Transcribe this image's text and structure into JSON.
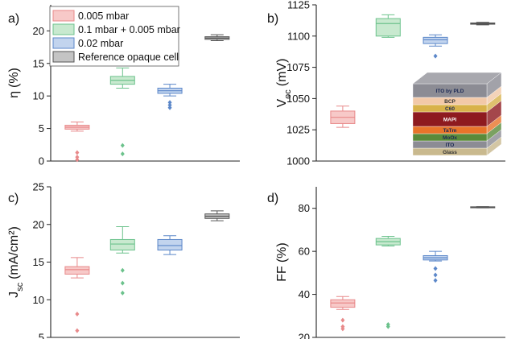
{
  "chart_data": [
    {
      "type": "box",
      "panel_label": "a)",
      "ylabel_main": "η",
      "ylabel_sub": "",
      "ylabel_unit": "(%)",
      "ylim": [
        0,
        24
      ],
      "yticks": [
        0,
        5,
        10,
        15,
        20
      ],
      "legend_position": "top-left",
      "series": [
        {
          "name": "0.005 mbar",
          "color": "#e8898a",
          "fill": "#f7c9c8",
          "whisker_low": 4.6,
          "q1": 4.9,
          "median": 5.2,
          "q3": 5.5,
          "whisker_high": 6.0,
          "outliers": [
            1.3,
            0.6,
            0.2
          ]
        },
        {
          "name": "0.1 mbar + 0.005 mbar",
          "color": "#6cc28c",
          "fill": "#c8e9cf",
          "whisker_low": 11.2,
          "q1": 11.8,
          "median": 12.4,
          "q3": 13.0,
          "whisker_high": 14.3,
          "outliers": [
            2.4,
            1.1
          ]
        },
        {
          "name": "0.02 mbar",
          "color": "#5b87c9",
          "fill": "#c2d4ee",
          "whisker_low": 10.0,
          "q1": 10.4,
          "median": 10.8,
          "q3": 11.2,
          "whisker_high": 11.8,
          "outliers": [
            9.0,
            8.6,
            8.2
          ]
        },
        {
          "name": "Reference opaque cell",
          "color": "#555555",
          "fill": "#c4c4c4",
          "whisker_low": 18.5,
          "q1": 18.7,
          "median": 18.9,
          "q3": 19.1,
          "whisker_high": 19.4,
          "outliers": []
        }
      ]
    },
    {
      "type": "box",
      "panel_label": "b)",
      "ylabel_main": "V",
      "ylabel_sub": "oc",
      "ylabel_unit": "(mV)",
      "ylim": [
        1000,
        1125
      ],
      "yticks": [
        1000,
        1025,
        1050,
        1075,
        1100,
        1125
      ],
      "series": [
        {
          "name": "0.005 mbar",
          "whisker_low": 1027,
          "q1": 1030,
          "median": 1035,
          "q3": 1040,
          "whisker_high": 1044,
          "outliers": []
        },
        {
          "name": "0.1 mbar + 0.005 mbar",
          "whisker_low": 1099,
          "q1": 1100,
          "median": 1110,
          "q3": 1114,
          "whisker_high": 1117,
          "outliers": []
        },
        {
          "name": "0.02 mbar",
          "whisker_low": 1092,
          "q1": 1094,
          "median": 1097,
          "q3": 1099,
          "whisker_high": 1101,
          "outliers": [
            1084
          ]
        },
        {
          "name": "Reference opaque cell",
          "whisker_low": 1109,
          "q1": 1109.5,
          "median": 1110,
          "q3": 1110.5,
          "whisker_high": 1111,
          "outliers": []
        }
      ],
      "inset_layers": [
        {
          "label": "ITO by PLD",
          "color": "#8c8c94"
        },
        {
          "label": "BCP",
          "color": "#f2c9a8"
        },
        {
          "label": "C60",
          "color": "#d8b24a"
        },
        {
          "label": "MAPI",
          "color": "#8e1a1f"
        },
        {
          "label": "TaTm",
          "color": "#e8742a"
        },
        {
          "label": "MoOx",
          "color": "#5a8a3a"
        },
        {
          "label": "ITO",
          "color": "#8c8c94"
        },
        {
          "label": "Glass",
          "color": "#c9b98e"
        }
      ]
    },
    {
      "type": "box",
      "panel_label": "c)",
      "ylabel_main": "J",
      "ylabel_sub": "sc",
      "ylabel_unit": "(mA/cm²)",
      "ylim": [
        5,
        25
      ],
      "yticks": [
        5,
        10,
        15,
        20,
        25
      ],
      "series": [
        {
          "name": "0.005 mbar",
          "whisker_low": 12.9,
          "q1": 13.4,
          "median": 14.0,
          "q3": 14.4,
          "whisker_high": 15.6,
          "outliers": [
            8.1,
            5.9
          ]
        },
        {
          "name": "0.1 mbar + 0.005 mbar",
          "whisker_low": 16.2,
          "q1": 16.6,
          "median": 17.4,
          "q3": 18.0,
          "whisker_high": 19.7,
          "outliers": [
            13.9,
            12.2,
            10.9
          ]
        },
        {
          "name": "0.02 mbar",
          "whisker_low": 16.0,
          "q1": 16.6,
          "median": 17.2,
          "q3": 18.0,
          "whisker_high": 18.5,
          "outliers": []
        },
        {
          "name": "Reference opaque cell",
          "whisker_low": 20.5,
          "q1": 20.8,
          "median": 21.1,
          "q3": 21.4,
          "whisker_high": 21.8,
          "outliers": []
        }
      ]
    },
    {
      "type": "box",
      "panel_label": "d)",
      "ylabel_main": "FF",
      "ylabel_sub": "",
      "ylabel_unit": "(%)",
      "ylim": [
        20,
        90
      ],
      "yticks": [
        20,
        40,
        60,
        80
      ],
      "series": [
        {
          "name": "0.005 mbar",
          "whisker_low": 33.0,
          "q1": 34.0,
          "median": 36.0,
          "q3": 37.5,
          "whisker_high": 39.0,
          "outliers": [
            28.0,
            25.0,
            24.0
          ]
        },
        {
          "name": "0.1 mbar + 0.005 mbar",
          "whisker_low": 62.5,
          "q1": 63.0,
          "median": 64.5,
          "q3": 66.0,
          "whisker_high": 67.0,
          "outliers": [
            26.0,
            25.0
          ]
        },
        {
          "name": "0.02 mbar",
          "whisker_low": 55.5,
          "q1": 56.0,
          "median": 57.0,
          "q3": 58.0,
          "whisker_high": 60.0,
          "outliers": [
            52.0,
            49.0,
            46.5
          ]
        },
        {
          "name": "Reference opaque cell",
          "whisker_low": 80.2,
          "q1": 80.3,
          "median": 80.5,
          "q3": 80.7,
          "whisker_high": 80.8,
          "outliers": []
        }
      ]
    }
  ]
}
